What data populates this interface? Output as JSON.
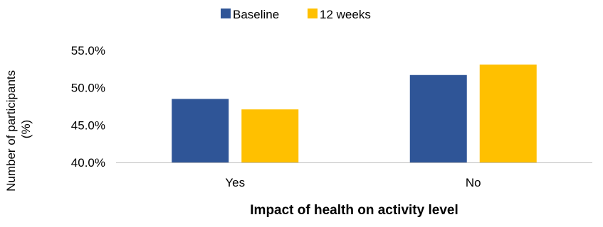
{
  "chart_data": {
    "type": "bar",
    "categories": [
      "Yes",
      "No"
    ],
    "series": [
      {
        "name": "Baseline",
        "color": "#2F5597",
        "values": [
          48.5,
          51.7
        ]
      },
      {
        "name": "12 weeks",
        "color": "#FFC000",
        "values": [
          47.1,
          53.1
        ]
      }
    ],
    "xlabel": "Impact of health on activity level",
    "ylabel_lines": [
      "Number of participants",
      "(%)"
    ],
    "ylim": [
      40,
      55
    ],
    "yticks": [
      40,
      45,
      50,
      55
    ],
    "ytick_labels": [
      "40.0%",
      "45.0%",
      "50.0%",
      "55.0%"
    ],
    "grid": false,
    "legend": {
      "position": "top-center",
      "entries": [
        "Baseline",
        "12 weeks"
      ]
    }
  }
}
